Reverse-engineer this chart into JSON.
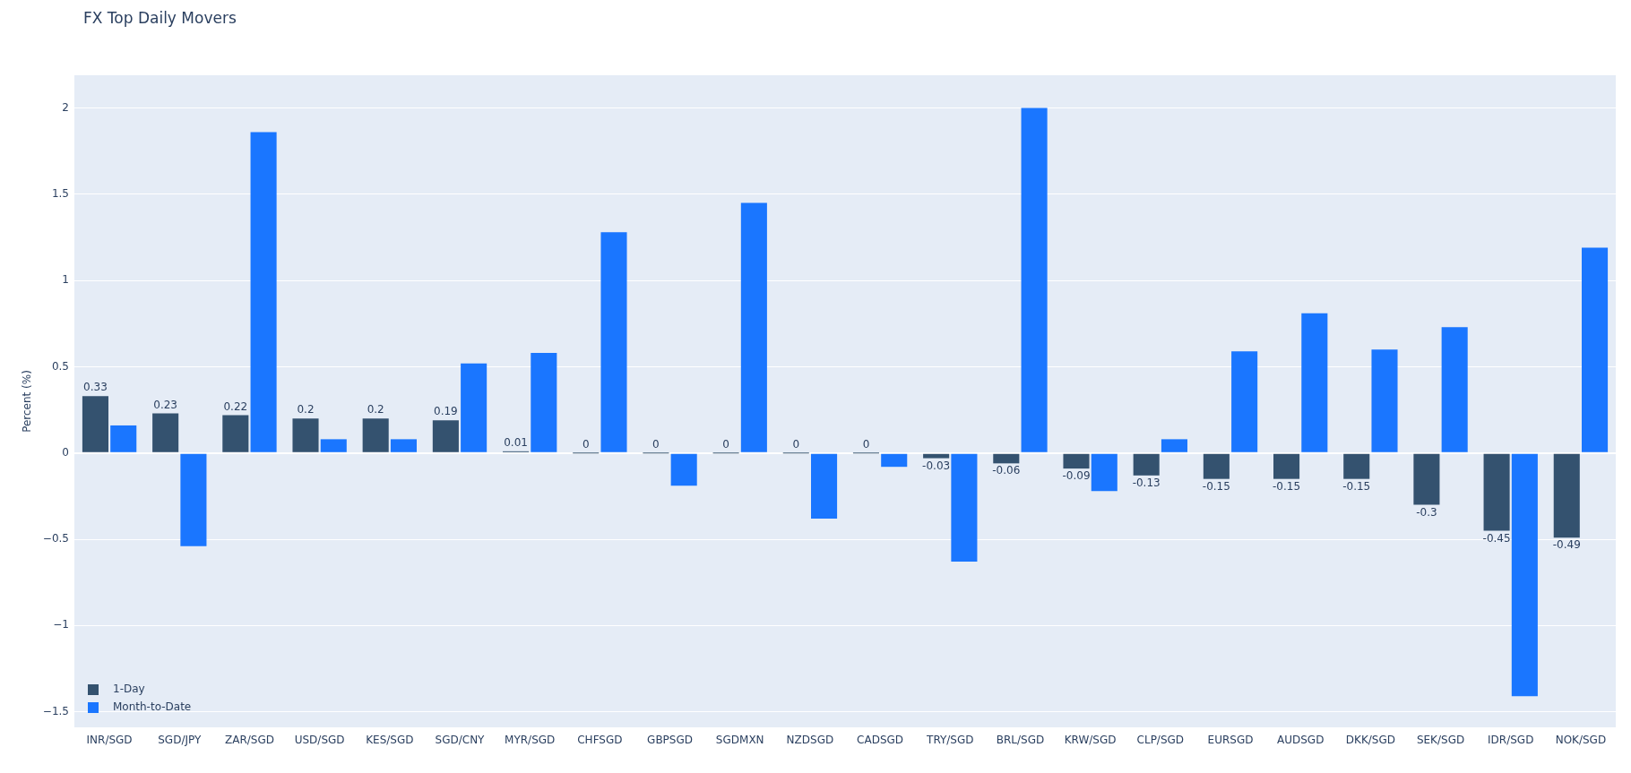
{
  "chart_data": {
    "type": "bar",
    "title": "FX Top Daily Movers",
    "ylabel": "Percent (%)",
    "categories": [
      "INR/SGD",
      "SGD/JPY",
      "ZAR/SGD",
      "USD/SGD",
      "KES/SGD",
      "SGD/CNY",
      "MYR/SGD",
      "CHFSGD",
      "GBPSGD",
      "SGDMXN",
      "NZDSGD",
      "CADSGD",
      "TRY/SGD",
      "BRL/SGD",
      "KRW/SGD",
      "CLP/SGD",
      "EURSGD",
      "AUDSGD",
      "DKK/SGD",
      "SEK/SGD",
      "IDR/SGD",
      "NOK/SGD"
    ],
    "series": [
      {
        "name": "1-Day",
        "color": "#34526f",
        "values": [
          0.33,
          0.23,
          0.22,
          0.2,
          0.2,
          0.19,
          0.01,
          0,
          0,
          0,
          0,
          0,
          -0.03,
          -0.06,
          -0.09,
          -0.13,
          -0.15,
          -0.15,
          -0.15,
          -0.3,
          -0.45,
          -0.49
        ],
        "value_labels": [
          "0.33",
          "0.23",
          "0.22",
          "0.2",
          "0.2",
          "0.19",
          "0.01",
          "0",
          "0",
          "0",
          "0",
          "0",
          "-0.03",
          "-0.06",
          "-0.09",
          "-0.13",
          "-0.15",
          "-0.15",
          "-0.15",
          "-0.3",
          "-0.45",
          "-0.49"
        ]
      },
      {
        "name": "Month-to-Date",
        "color": "#1a76ff",
        "values": [
          0.16,
          -0.54,
          1.86,
          0.08,
          0.08,
          0.52,
          0.58,
          1.28,
          -0.19,
          1.45,
          -0.38,
          -0.08,
          -0.63,
          2.0,
          -0.22,
          0.08,
          0.59,
          0.81,
          0.6,
          0.73,
          -1.41,
          1.19
        ]
      }
    ],
    "ylim": [
      -1.59,
      2.19
    ],
    "yticks": [
      {
        "value": -1.5,
        "label": "−1.5"
      },
      {
        "value": -1,
        "label": "−1"
      },
      {
        "value": -0.5,
        "label": "−0.5"
      },
      0,
      0.5,
      1,
      1.5,
      2
    ],
    "grid": "y",
    "legend": "bottom left"
  }
}
